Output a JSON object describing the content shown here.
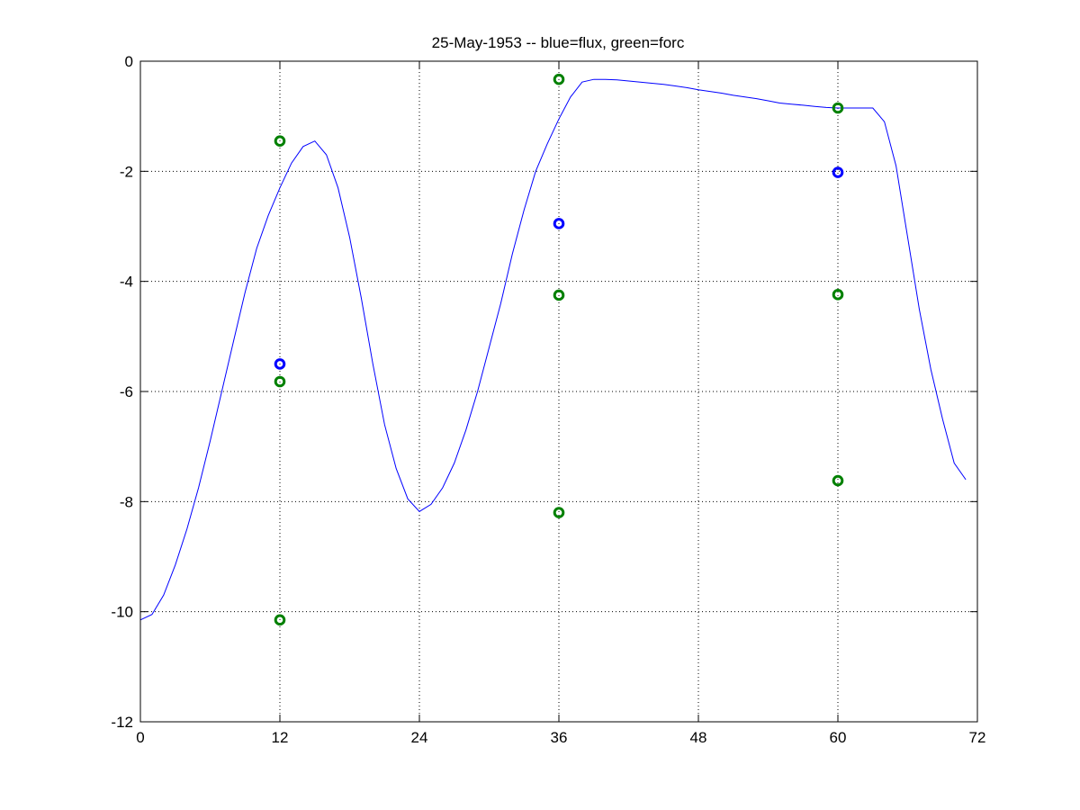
{
  "chart_data": {
    "type": "line",
    "title": "25-May-1953 -- blue=flux, green=forc",
    "xlabel": "",
    "ylabel": "",
    "xlim": [
      0,
      72
    ],
    "ylim": [
      -12,
      0
    ],
    "xticks": [
      0,
      12,
      24,
      36,
      48,
      60,
      72
    ],
    "yticks": [
      0,
      -2,
      -4,
      -6,
      -8,
      -10,
      -12
    ],
    "grid": true,
    "colors": {
      "line": "#0000ff",
      "flux": "#0000ff",
      "forc": "#008000"
    },
    "series": [
      {
        "type": "line",
        "color": "#0000ff",
        "x": [
          0,
          1,
          2,
          3,
          4,
          5,
          6,
          7,
          8,
          9,
          10,
          11,
          12,
          13,
          14,
          15,
          16,
          17,
          18,
          19,
          20,
          21,
          22,
          23,
          24,
          25,
          26,
          27,
          28,
          29,
          30,
          31,
          32,
          33,
          34,
          35,
          36,
          37,
          38,
          39,
          40,
          41,
          42,
          43,
          44,
          45,
          46,
          47,
          48,
          49,
          50,
          51,
          52,
          53,
          54,
          55,
          56,
          57,
          58,
          59,
          60,
          61,
          62,
          63,
          64,
          65,
          66,
          67,
          68,
          69,
          70,
          71
        ],
        "y": [
          -10.15,
          -10.05,
          -9.7,
          -9.15,
          -8.5,
          -7.75,
          -6.9,
          -6.0,
          -5.1,
          -4.2,
          -3.4,
          -2.8,
          -2.3,
          -1.85,
          -1.55,
          -1.45,
          -1.7,
          -2.3,
          -3.2,
          -4.3,
          -5.5,
          -6.6,
          -7.4,
          -7.95,
          -8.18,
          -8.05,
          -7.75,
          -7.3,
          -6.7,
          -6.0,
          -5.2,
          -4.4,
          -3.5,
          -2.7,
          -2.0,
          -1.5,
          -1.05,
          -0.65,
          -0.38,
          -0.33,
          -0.33,
          -0.34,
          -0.36,
          -0.38,
          -0.4,
          -0.42,
          -0.45,
          -0.48,
          -0.52,
          -0.55,
          -0.58,
          -0.62,
          -0.65,
          -0.68,
          -0.72,
          -0.76,
          -0.78,
          -0.8,
          -0.82,
          -0.84,
          -0.85,
          -0.85,
          -0.85,
          -0.85,
          -1.1,
          -1.9,
          -3.2,
          -4.5,
          -5.6,
          -6.5,
          -7.3,
          -7.6
        ]
      },
      {
        "type": "scatter",
        "label": "flux",
        "color": "#0000ff",
        "x": [
          12,
          36,
          60
        ],
        "y": [
          -5.5,
          -2.95,
          -2.02
        ]
      },
      {
        "type": "scatter",
        "label": "forc",
        "color": "#008000",
        "x": [
          12,
          12,
          12,
          36,
          36,
          36,
          60,
          60,
          60
        ],
        "y": [
          -1.45,
          -5.82,
          -10.15,
          -0.33,
          -4.25,
          -8.2,
          -0.85,
          -4.24,
          -7.62
        ]
      }
    ]
  }
}
